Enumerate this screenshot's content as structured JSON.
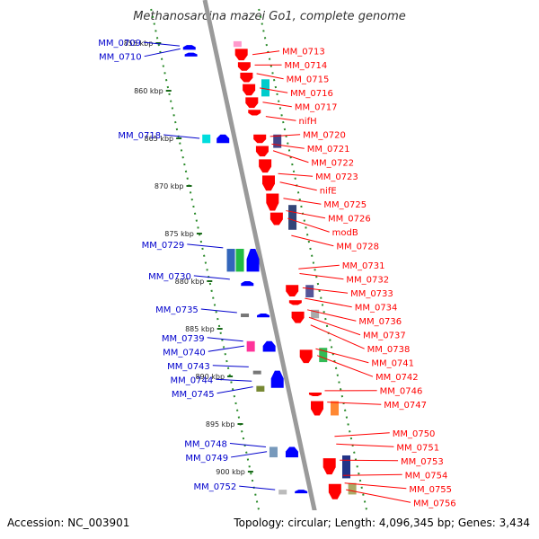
{
  "title": "Methanosarcina mazei Go1, complete genome",
  "accession": "Accession: NC_003901",
  "summary": "Topology: circular; Length: 4,096,345 bp; Genes: 3,434",
  "colors": {
    "backbone": "#9a9a9a",
    "dots": "#2a8a2a",
    "forward_label": "#ff0000",
    "reverse_label": "#0000cc",
    "forward_gene": "#ff0000",
    "reverse_gene": "#0000ff"
  },
  "kbp_ticks": [
    "855 kbp",
    "860 kbp",
    "865 kbp",
    "870 kbp",
    "875 kbp",
    "880 kbp",
    "885 kbp",
    "890 kbp",
    "895 kbp",
    "900 kbp"
  ],
  "reverse_genes": [
    {
      "label": "MM_0709",
      "kbp": 855.3
    },
    {
      "label": "MM_0710",
      "kbp": 855.6
    },
    {
      "label": "MM_0718",
      "kbp": 865.0
    },
    {
      "label": "MM_0729",
      "kbp": 876.5
    },
    {
      "label": "MM_0730",
      "kbp": 879.8
    },
    {
      "label": "MM_0735",
      "kbp": 883.3
    },
    {
      "label": "MM_0739",
      "kbp": 886.3
    },
    {
      "label": "MM_0740",
      "kbp": 886.8
    },
    {
      "label": "MM_0743",
      "kbp": 889.0
    },
    {
      "label": "MM_0744",
      "kbp": 890.5
    },
    {
      "label": "MM_0745",
      "kbp": 891.1
    },
    {
      "label": "MM_0748",
      "kbp": 897.4
    },
    {
      "label": "MM_0749",
      "kbp": 897.9
    },
    {
      "label": "MM_0752",
      "kbp": 901.9
    }
  ],
  "forward_genes": [
    {
      "label": "MM_0713",
      "kbp": 856.2
    },
    {
      "label": "MM_0714",
      "kbp": 857.3
    },
    {
      "label": "MM_0715",
      "kbp": 858.2
    },
    {
      "label": "MM_0716",
      "kbp": 859.7
    },
    {
      "label": "MM_0717",
      "kbp": 861.2
    },
    {
      "label": "nifH",
      "kbp": 862.7
    },
    {
      "label": "MM_0720",
      "kbp": 864.8
    },
    {
      "label": "MM_0721",
      "kbp": 865.6
    },
    {
      "label": "MM_0722",
      "kbp": 866.3
    },
    {
      "label": "MM_0723",
      "kbp": 868.7
    },
    {
      "label": "nifE",
      "kbp": 869.6
    },
    {
      "label": "MM_0725",
      "kbp": 871.3
    },
    {
      "label": "MM_0726",
      "kbp": 872.6
    },
    {
      "label": "modB",
      "kbp": 873.4
    },
    {
      "label": "MM_0728",
      "kbp": 875.2
    },
    {
      "label": "MM_0731",
      "kbp": 878.7
    },
    {
      "label": "MM_0732",
      "kbp": 879.2
    },
    {
      "label": "MM_0733",
      "kbp": 880.7
    },
    {
      "label": "MM_0734",
      "kbp": 881.8
    },
    {
      "label": "MM_0736",
      "kbp": 883.0
    },
    {
      "label": "MM_0737",
      "kbp": 883.8
    },
    {
      "label": "MM_0738",
      "kbp": 884.6
    },
    {
      "label": "MM_0741",
      "kbp": 887.1
    },
    {
      "label": "MM_0742",
      "kbp": 887.8
    },
    {
      "label": "MM_0746",
      "kbp": 891.5
    },
    {
      "label": "MM_0747",
      "kbp": 892.7
    },
    {
      "label": "MM_0750",
      "kbp": 896.3
    },
    {
      "label": "MM_0751",
      "kbp": 897.1
    },
    {
      "label": "MM_0753",
      "kbp": 898.8
    },
    {
      "label": "MM_0754",
      "kbp": 900.4
    },
    {
      "label": "MM_0755",
      "kbp": 901.2
    },
    {
      "label": "MM_0756",
      "kbp": 901.9
    }
  ],
  "features": [
    {
      "strand": "reverse",
      "kbp": 855.2,
      "len": 0.5,
      "shape": "arrow",
      "color": "#0000ff"
    },
    {
      "strand": "reverse",
      "kbp": 856.0,
      "len": 0.4,
      "shape": "arrow",
      "color": "#0000ff"
    },
    {
      "strand": "forward",
      "kbp": 854.8,
      "len": 0.6,
      "shape": "block",
      "color": "#ff99cc"
    },
    {
      "strand": "forward",
      "kbp": 855.6,
      "len": 1.2,
      "shape": "arrow",
      "color": "#ff0000"
    },
    {
      "strand": "forward",
      "kbp": 857.0,
      "len": 0.9,
      "shape": "arrow",
      "color": "#ff0000"
    },
    {
      "strand": "forward",
      "kbp": 858.1,
      "len": 1.0,
      "shape": "arrow",
      "color": "#ff0000"
    },
    {
      "strand": "forward",
      "kbp": 859.3,
      "len": 1.2,
      "shape": "arrow",
      "color": "#ff0000"
    },
    {
      "strand": "forward",
      "kbp": 860.7,
      "len": 1.1,
      "shape": "arrow",
      "color": "#ff0000"
    },
    {
      "strand": "forward",
      "kbp": 862.0,
      "len": 0.6,
      "shape": "arrow",
      "color": "#ff0000"
    },
    {
      "strand": "forward2",
      "kbp": 858.8,
      "len": 1.8,
      "shape": "block",
      "color": "#00cccc"
    },
    {
      "strand": "reverse",
      "kbp": 864.6,
      "len": 0.9,
      "shape": "block",
      "color": "#00dddd"
    },
    {
      "strand": "reverse",
      "kbp": 864.6,
      "len": 0.9,
      "shape": "arrow",
      "color": "#0000ff",
      "offset": 16
    },
    {
      "strand": "forward2",
      "kbp": 864.6,
      "len": 1.4,
      "shape": "block",
      "color": "#444488"
    },
    {
      "strand": "forward",
      "kbp": 864.6,
      "len": 0.9,
      "shape": "arrow",
      "color": "#ff0000"
    },
    {
      "strand": "forward",
      "kbp": 865.8,
      "len": 1.1,
      "shape": "arrow",
      "color": "#ff0000"
    },
    {
      "strand": "forward",
      "kbp": 867.2,
      "len": 1.4,
      "shape": "arrow",
      "color": "#ff0000"
    },
    {
      "strand": "forward",
      "kbp": 868.9,
      "len": 1.6,
      "shape": "arrow",
      "color": "#ff0000"
    },
    {
      "strand": "forward",
      "kbp": 870.8,
      "len": 1.8,
      "shape": "arrow",
      "color": "#ff0000"
    },
    {
      "strand": "forward",
      "kbp": 872.8,
      "len": 1.3,
      "shape": "arrow",
      "color": "#ff0000"
    },
    {
      "strand": "forward2",
      "kbp": 872.0,
      "len": 2.6,
      "shape": "block",
      "color": "#334477"
    },
    {
      "strand": "reverse",
      "kbp": 876.6,
      "len": 2.4,
      "shape": "block",
      "color": "#3366bb"
    },
    {
      "strand": "reverse",
      "kbp": 876.6,
      "len": 2.4,
      "shape": "block",
      "color": "#22bb44",
      "offset": 10
    },
    {
      "strand": "reverse",
      "kbp": 876.6,
      "len": 2.4,
      "shape": "arrow",
      "color": "#0000ff",
      "offset": 22
    },
    {
      "strand": "reverse",
      "kbp": 880.0,
      "len": 0.5,
      "shape": "arrow",
      "color": "#0000ff",
      "offset": 8
    },
    {
      "strand": "forward",
      "kbp": 880.4,
      "len": 1.2,
      "shape": "arrow",
      "color": "#ff0000"
    },
    {
      "strand": "forward2",
      "kbp": 880.4,
      "len": 1.3,
      "shape": "block",
      "color": "#555599"
    },
    {
      "strand": "forward",
      "kbp": 882.0,
      "len": 0.5,
      "shape": "arrow",
      "color": "#ff0000"
    },
    {
      "strand": "forward",
      "kbp": 883.2,
      "len": 1.2,
      "shape": "arrow",
      "color": "#ff0000"
    },
    {
      "strand": "forward2",
      "kbp": 883.0,
      "len": 0.9,
      "shape": "block",
      "color": "#aaaaaa"
    },
    {
      "strand": "reverse",
      "kbp": 883.4,
      "len": 0.2,
      "shape": "block",
      "color": "#777777"
    },
    {
      "strand": "reverse",
      "kbp": 883.4,
      "len": 0.4,
      "shape": "arrow",
      "color": "#0000ff",
      "offset": 18
    },
    {
      "strand": "reverse",
      "kbp": 886.3,
      "len": 1.1,
      "shape": "block",
      "color": "#ff3399"
    },
    {
      "strand": "reverse",
      "kbp": 886.3,
      "len": 1.1,
      "shape": "arrow",
      "color": "#0000ff",
      "offset": 18
    },
    {
      "strand": "forward",
      "kbp": 887.2,
      "len": 1.4,
      "shape": "arrow",
      "color": "#ff0000"
    },
    {
      "strand": "forward2",
      "kbp": 887.0,
      "len": 1.5,
      "shape": "block",
      "color": "#33bb55"
    },
    {
      "strand": "reverse",
      "kbp": 889.4,
      "len": 0.2,
      "shape": "block",
      "color": "#777777"
    },
    {
      "strand": "reverse",
      "kbp": 889.4,
      "len": 1.8,
      "shape": "arrow",
      "color": "#0000ff",
      "offset": 20
    },
    {
      "strand": "reverse",
      "kbp": 891.0,
      "len": 0.6,
      "shape": "block",
      "color": "#778833"
    },
    {
      "strand": "forward",
      "kbp": 891.7,
      "len": 0.3,
      "shape": "arrow",
      "color": "#ff0000"
    },
    {
      "strand": "forward",
      "kbp": 892.6,
      "len": 1.5,
      "shape": "arrow",
      "color": "#ff0000"
    },
    {
      "strand": "forward2",
      "kbp": 892.6,
      "len": 1.5,
      "shape": "block",
      "color": "#ff8833"
    },
    {
      "strand": "reverse",
      "kbp": 897.4,
      "len": 1.1,
      "shape": "block",
      "color": "#7799bb"
    },
    {
      "strand": "reverse",
      "kbp": 897.4,
      "len": 1.1,
      "shape": "arrow",
      "color": "#0000ff",
      "offset": 18
    },
    {
      "strand": "forward",
      "kbp": 898.6,
      "len": 1.7,
      "shape": "arrow",
      "color": "#ff0000"
    },
    {
      "strand": "forward2",
      "kbp": 898.3,
      "len": 2.4,
      "shape": "block",
      "color": "#223388"
    },
    {
      "strand": "reverse",
      "kbp": 901.9,
      "len": 0.5,
      "shape": "block",
      "color": "#bbbbbb"
    },
    {
      "strand": "reverse",
      "kbp": 901.9,
      "len": 0.3,
      "shape": "arrow",
      "color": "#0000ff",
      "offset": 18
    },
    {
      "strand": "forward",
      "kbp": 901.3,
      "len": 1.6,
      "shape": "arrow",
      "color": "#ff0000"
    },
    {
      "strand": "forward2",
      "kbp": 901.2,
      "len": 1.2,
      "shape": "block",
      "color": "#aaaa66"
    }
  ]
}
